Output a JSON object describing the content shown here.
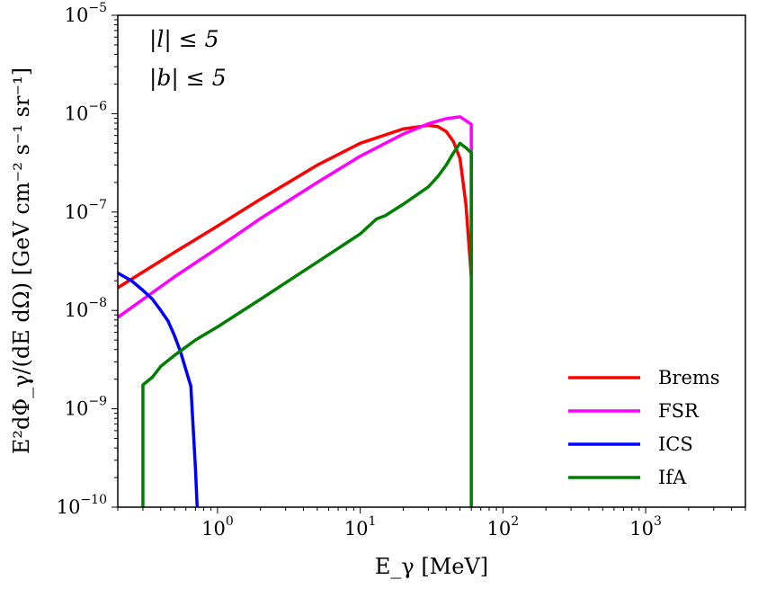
{
  "chart_data": {
    "type": "line",
    "xscale": "log",
    "yscale": "log",
    "xlim": [
      0.2,
      5000
    ],
    "ylim": [
      1e-10,
      1e-05
    ],
    "xlabel": "E_γ [MeV]",
    "ylabel": "E²dΦ_γ/(dE dΩ) [GeV cm⁻² s⁻¹ sr⁻¹]",
    "x_ticks": [
      {
        "value": 1,
        "base": "10",
        "exp": "0"
      },
      {
        "value": 10,
        "base": "10",
        "exp": "1"
      },
      {
        "value": 100,
        "base": "10",
        "exp": "2"
      },
      {
        "value": 1000,
        "base": "10",
        "exp": "3"
      }
    ],
    "y_ticks": [
      {
        "value": 1e-10,
        "base": "10",
        "exp": "−10"
      },
      {
        "value": 1e-09,
        "base": "10",
        "exp": "−9"
      },
      {
        "value": 1e-08,
        "base": "10",
        "exp": "−8"
      },
      {
        "value": 1e-07,
        "base": "10",
        "exp": "−7"
      },
      {
        "value": 1e-06,
        "base": "10",
        "exp": "−6"
      },
      {
        "value": 1e-05,
        "base": "10",
        "exp": "−5"
      }
    ],
    "annotations": [
      "|l| ≤ 5",
      "|b| ≤ 5"
    ],
    "legend_position": "lower-right",
    "series": [
      {
        "name": "Brems",
        "color": "#ff0000",
        "points": [
          [
            0.2,
            1.7e-08
          ],
          [
            0.5,
            3.9e-08
          ],
          [
            1,
            7.2e-08
          ],
          [
            2,
            1.35e-07
          ],
          [
            5,
            3e-07
          ],
          [
            10,
            5e-07
          ],
          [
            20,
            7e-07
          ],
          [
            30,
            7.6e-07
          ],
          [
            35,
            7.4e-07
          ],
          [
            40,
            6.6e-07
          ],
          [
            45,
            5.2e-07
          ],
          [
            50,
            3.5e-07
          ],
          [
            55,
            1.2e-07
          ],
          [
            60,
            2.2e-08
          ]
        ]
      },
      {
        "name": "FSR",
        "color": "#ff00ff",
        "points": [
          [
            0.2,
            8.5e-09
          ],
          [
            0.5,
            2.2e-08
          ],
          [
            1,
            4.3e-08
          ],
          [
            2,
            8.6e-08
          ],
          [
            5,
            2e-07
          ],
          [
            10,
            3.7e-07
          ],
          [
            20,
            6.2e-07
          ],
          [
            30,
            7.9e-07
          ],
          [
            40,
            8.9e-07
          ],
          [
            50,
            9.3e-07
          ],
          [
            60,
            7.8e-07
          ],
          [
            60,
            2.2e-08
          ]
        ]
      },
      {
        "name": "ICS",
        "color": "#0000ff",
        "points": [
          [
            0.2,
            2.4e-08
          ],
          [
            0.25,
            2e-08
          ],
          [
            0.3,
            1.6e-08
          ],
          [
            0.35,
            1.3e-08
          ],
          [
            0.4,
            1e-08
          ],
          [
            0.45,
            7.8e-09
          ],
          [
            0.5,
            5.5e-09
          ],
          [
            0.55,
            3.8e-09
          ],
          [
            0.6,
            2.5e-09
          ],
          [
            0.65,
            1.7e-09
          ],
          [
            0.7,
            2.5e-10
          ],
          [
            0.72,
            1e-10
          ]
        ]
      },
      {
        "name": "IfA",
        "color": "#008000",
        "points": [
          [
            0.3,
            1e-10
          ],
          [
            0.3,
            1.75e-09
          ],
          [
            0.35,
            2.1e-09
          ],
          [
            0.4,
            2.7e-09
          ],
          [
            0.5,
            3.5e-09
          ],
          [
            0.7,
            5e-09
          ],
          [
            1,
            6.8e-09
          ],
          [
            2,
            1.3e-08
          ],
          [
            5,
            3.1e-08
          ],
          [
            10,
            6e-08
          ],
          [
            13,
            8.5e-08
          ],
          [
            15,
            9.2e-08
          ],
          [
            20,
            1.2e-07
          ],
          [
            30,
            1.8e-07
          ],
          [
            35,
            2.3e-07
          ],
          [
            40,
            3e-07
          ],
          [
            45,
            4e-07
          ],
          [
            50,
            5e-07
          ],
          [
            55,
            4.5e-07
          ],
          [
            60,
            4e-07
          ],
          [
            60,
            1e-10
          ]
        ]
      }
    ]
  }
}
